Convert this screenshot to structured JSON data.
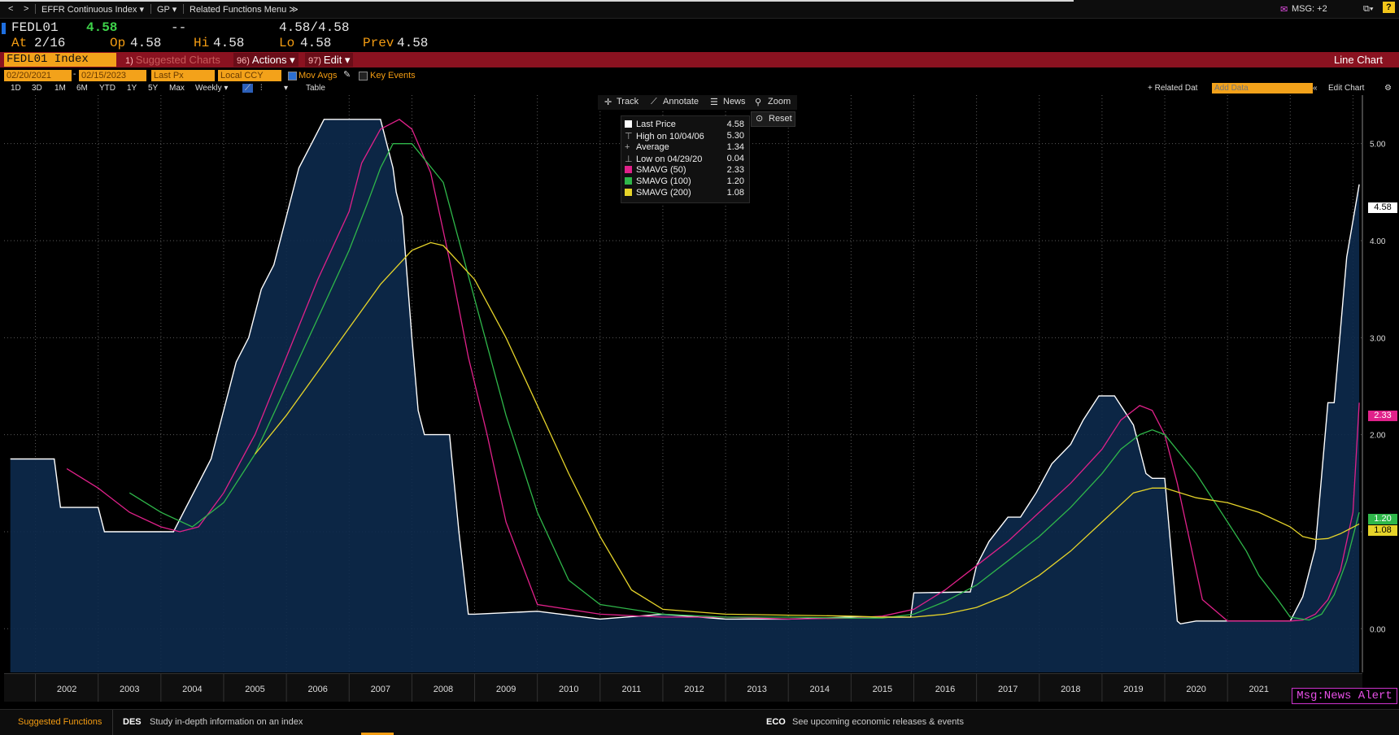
{
  "nav": {
    "back": "<",
    "forward": ">",
    "menu1": "EFFR Continuous Index ▾",
    "menu2": "GP ▾",
    "menu3": "Related Functions Menu ≫",
    "msg": "MSG: +2",
    "help": "?"
  },
  "quote": {
    "ticker": "FEDL01",
    "last": "4.58",
    "change": "--",
    "bid_ask": "4.58/4.58",
    "at_label": "At",
    "at_value": "2/16",
    "op_label": "Op",
    "op_value": "4.58",
    "hi_label": "Hi",
    "hi_value": "4.58",
    "lo_label": "Lo",
    "lo_value": "4.58",
    "prev_label": "Prev",
    "prev_value": "4.58"
  },
  "header": {
    "security": "FEDL01 Index",
    "suggested": "Suggested Charts",
    "actions_num": "96)",
    "actions": "Actions ▾",
    "edit_num": "97)",
    "edit": "Edit ▾",
    "chart_type": "Line Chart"
  },
  "controls": {
    "start_date": "02/20/2021",
    "end_date": "02/15/2023",
    "field": "Last Px",
    "currency": "Local CCY",
    "mov_avgs": "Mov Avgs",
    "key_events": "Key Events",
    "ranges": [
      "1D",
      "3D",
      "1M",
      "6M",
      "YTD",
      "1Y",
      "5Y",
      "Max"
    ],
    "frequency": "Weekly ▾",
    "table": "Table",
    "related_data": "+ Related Dat",
    "add_data_placeholder": "Add Data",
    "edit_chart": "Edit Chart"
  },
  "tools": {
    "track": "Track",
    "annotate": "Annotate",
    "news": "News",
    "zoom": "Zoom",
    "reset": "Reset"
  },
  "legend": [
    {
      "label": "Last Price",
      "value": "4.58",
      "color": "#ffffff"
    },
    {
      "label": "High on 10/04/06",
      "value": "5.30",
      "color": ""
    },
    {
      "label": "Average",
      "value": "1.34",
      "color": ""
    },
    {
      "label": "Low on 04/29/20",
      "value": "0.04",
      "color": ""
    },
    {
      "label": "SMAVG (50)",
      "value": "2.33",
      "color": "#e0218a"
    },
    {
      "label": "SMAVG (100)",
      "value": "1.20",
      "color": "#2fb74a"
    },
    {
      "label": "SMAVG (200)",
      "value": "1.08",
      "color": "#e6d42a"
    }
  ],
  "value_tags": {
    "last": "4.58",
    "sma50": "2.33",
    "sma100": "1.20",
    "sma200": "1.08"
  },
  "chart_data": {
    "type": "area",
    "ylim": [
      -0.45,
      5.5
    ],
    "yticks": [
      "5.00",
      "4.00",
      "3.00",
      "2.00",
      "1.00",
      "0.00"
    ],
    "x_labels": [
      "2002",
      "2003",
      "2004",
      "2005",
      "2006",
      "2007",
      "2008",
      "2009",
      "2010",
      "2011",
      "2012",
      "2013",
      "2014",
      "2015",
      "2016",
      "2017",
      "2018",
      "2019",
      "2020",
      "2021"
    ],
    "series": [
      {
        "name": "Last Price",
        "color": "#ffffff",
        "x": [
          2001.6,
          2002.3,
          2002.4,
          2003.0,
          2003.1,
          2003.5,
          2003.8,
          2004.0,
          2004.2,
          2004.4,
          2004.6,
          2004.8,
          2005.0,
          2005.2,
          2005.4,
          2005.6,
          2005.8,
          2006.0,
          2006.2,
          2006.4,
          2006.6,
          2006.8,
          2007.0,
          2007.3,
          2007.5,
          2007.6,
          2007.7,
          2007.75,
          2007.85,
          2008.0,
          2008.1,
          2008.2,
          2008.4,
          2008.6,
          2008.75,
          2008.9,
          2009.0,
          2010.0,
          2011.0,
          2012.0,
          2013.0,
          2014.0,
          2015.0,
          2015.95,
          2016.0,
          2016.9,
          2017.0,
          2017.2,
          2017.5,
          2017.7,
          2017.95,
          2018.2,
          2018.5,
          2018.7,
          2018.95,
          2019.2,
          2019.5,
          2019.6,
          2019.7,
          2019.8,
          2020.0,
          2020.2,
          2020.25,
          2020.5,
          2021.0,
          2021.5,
          2022.0,
          2022.2,
          2022.3,
          2022.4,
          2022.5,
          2022.6,
          2022.7,
          2022.8,
          2022.9,
          2023.1
        ],
        "y": [
          1.75,
          1.75,
          1.25,
          1.25,
          1.0,
          1.0,
          1.0,
          1.0,
          1.0,
          1.25,
          1.5,
          1.75,
          2.25,
          2.75,
          3.0,
          3.5,
          3.75,
          4.25,
          4.75,
          5.0,
          5.25,
          5.25,
          5.25,
          5.25,
          5.25,
          5.0,
          4.75,
          4.5,
          4.25,
          3.0,
          2.25,
          2.0,
          2.0,
          2.0,
          1.0,
          0.15,
          0.15,
          0.18,
          0.1,
          0.15,
          0.1,
          0.1,
          0.12,
          0.12,
          0.37,
          0.38,
          0.65,
          0.9,
          1.15,
          1.15,
          1.4,
          1.7,
          1.9,
          2.15,
          2.4,
          2.4,
          2.1,
          1.85,
          1.6,
          1.55,
          1.55,
          0.08,
          0.05,
          0.08,
          0.08,
          0.08,
          0.08,
          0.33,
          0.58,
          0.83,
          1.58,
          2.33,
          2.33,
          3.08,
          3.83,
          4.58
        ]
      },
      {
        "name": "SMAVG (50)",
        "color": "#e0218a",
        "x": [
          2002.5,
          2003.0,
          2003.5,
          2004.0,
          2004.3,
          2004.6,
          2005.0,
          2005.5,
          2006.0,
          2006.5,
          2007.0,
          2007.2,
          2007.5,
          2007.8,
          2008.0,
          2008.3,
          2008.6,
          2008.9,
          2009.2,
          2009.5,
          2010.0,
          2011.0,
          2012.0,
          2013.0,
          2014.0,
          2015.0,
          2015.5,
          2016.0,
          2016.5,
          2017.0,
          2017.5,
          2018.0,
          2018.5,
          2019.0,
          2019.3,
          2019.6,
          2019.8,
          2020.0,
          2020.2,
          2020.4,
          2020.6,
          2021.0,
          2021.5,
          2022.0,
          2022.2,
          2022.4,
          2022.6,
          2022.8,
          2023.0,
          2023.1
        ],
        "y": [
          1.65,
          1.45,
          1.2,
          1.05,
          1.0,
          1.05,
          1.4,
          2.0,
          2.8,
          3.6,
          4.3,
          4.8,
          5.15,
          5.25,
          5.15,
          4.7,
          3.8,
          2.8,
          2.0,
          1.1,
          0.25,
          0.15,
          0.12,
          0.12,
          0.1,
          0.11,
          0.13,
          0.2,
          0.4,
          0.65,
          0.9,
          1.2,
          1.5,
          1.85,
          2.15,
          2.3,
          2.25,
          2.0,
          1.5,
          0.9,
          0.3,
          0.08,
          0.08,
          0.08,
          0.09,
          0.15,
          0.3,
          0.6,
          1.2,
          2.33
        ]
      },
      {
        "name": "SMAVG (100)",
        "color": "#2fb74a",
        "x": [
          2003.5,
          2004.0,
          2004.5,
          2005.0,
          2005.5,
          2006.0,
          2006.5,
          2007.0,
          2007.3,
          2007.5,
          2007.7,
          2008.0,
          2008.5,
          2009.0,
          2009.5,
          2010.0,
          2010.5,
          2011.0,
          2012.0,
          2013.0,
          2014.0,
          2015.0,
          2015.5,
          2016.0,
          2016.5,
          2017.0,
          2017.5,
          2018.0,
          2018.5,
          2019.0,
          2019.3,
          2019.6,
          2019.8,
          2020.0,
          2020.5,
          2021.0,
          2021.3,
          2021.5,
          2021.8,
          2022.0,
          2022.3,
          2022.5,
          2022.7,
          2022.9,
          2023.1
        ],
        "y": [
          1.4,
          1.2,
          1.05,
          1.3,
          1.8,
          2.5,
          3.2,
          3.9,
          4.4,
          4.75,
          5.0,
          5.0,
          4.6,
          3.4,
          2.2,
          1.2,
          0.5,
          0.25,
          0.15,
          0.12,
          0.12,
          0.11,
          0.11,
          0.15,
          0.28,
          0.45,
          0.7,
          0.95,
          1.25,
          1.6,
          1.85,
          2.0,
          2.05,
          2.0,
          1.6,
          1.1,
          0.8,
          0.55,
          0.3,
          0.12,
          0.09,
          0.15,
          0.35,
          0.7,
          1.2
        ]
      },
      {
        "name": "SMAVG (200)",
        "color": "#e6d42a",
        "x": [
          2005.5,
          2006.0,
          2006.5,
          2007.0,
          2007.5,
          2008.0,
          2008.3,
          2008.5,
          2009.0,
          2009.5,
          2010.0,
          2010.5,
          2011.0,
          2011.5,
          2012.0,
          2013.0,
          2014.0,
          2015.0,
          2015.5,
          2016.0,
          2016.5,
          2017.0,
          2017.5,
          2018.0,
          2018.5,
          2019.0,
          2019.5,
          2019.8,
          2020.0,
          2020.5,
          2021.0,
          2021.5,
          2022.0,
          2022.2,
          2022.4,
          2022.6,
          2022.8,
          2023.1
        ],
        "y": [
          1.8,
          2.2,
          2.65,
          3.1,
          3.55,
          3.9,
          3.98,
          3.95,
          3.6,
          3.0,
          2.3,
          1.6,
          0.95,
          0.4,
          0.2,
          0.15,
          0.14,
          0.13,
          0.12,
          0.12,
          0.15,
          0.22,
          0.35,
          0.55,
          0.8,
          1.1,
          1.4,
          1.45,
          1.45,
          1.35,
          1.3,
          1.2,
          1.05,
          0.95,
          0.92,
          0.93,
          0.98,
          1.08
        ]
      }
    ]
  },
  "bottom": {
    "suggested": "Suggested Functions",
    "des_code": "DES",
    "des_text": "Study in-depth information on an index",
    "eco_code": "ECO",
    "eco_text": "See upcoming economic releases & events",
    "alert": "Msg:News Alert"
  }
}
